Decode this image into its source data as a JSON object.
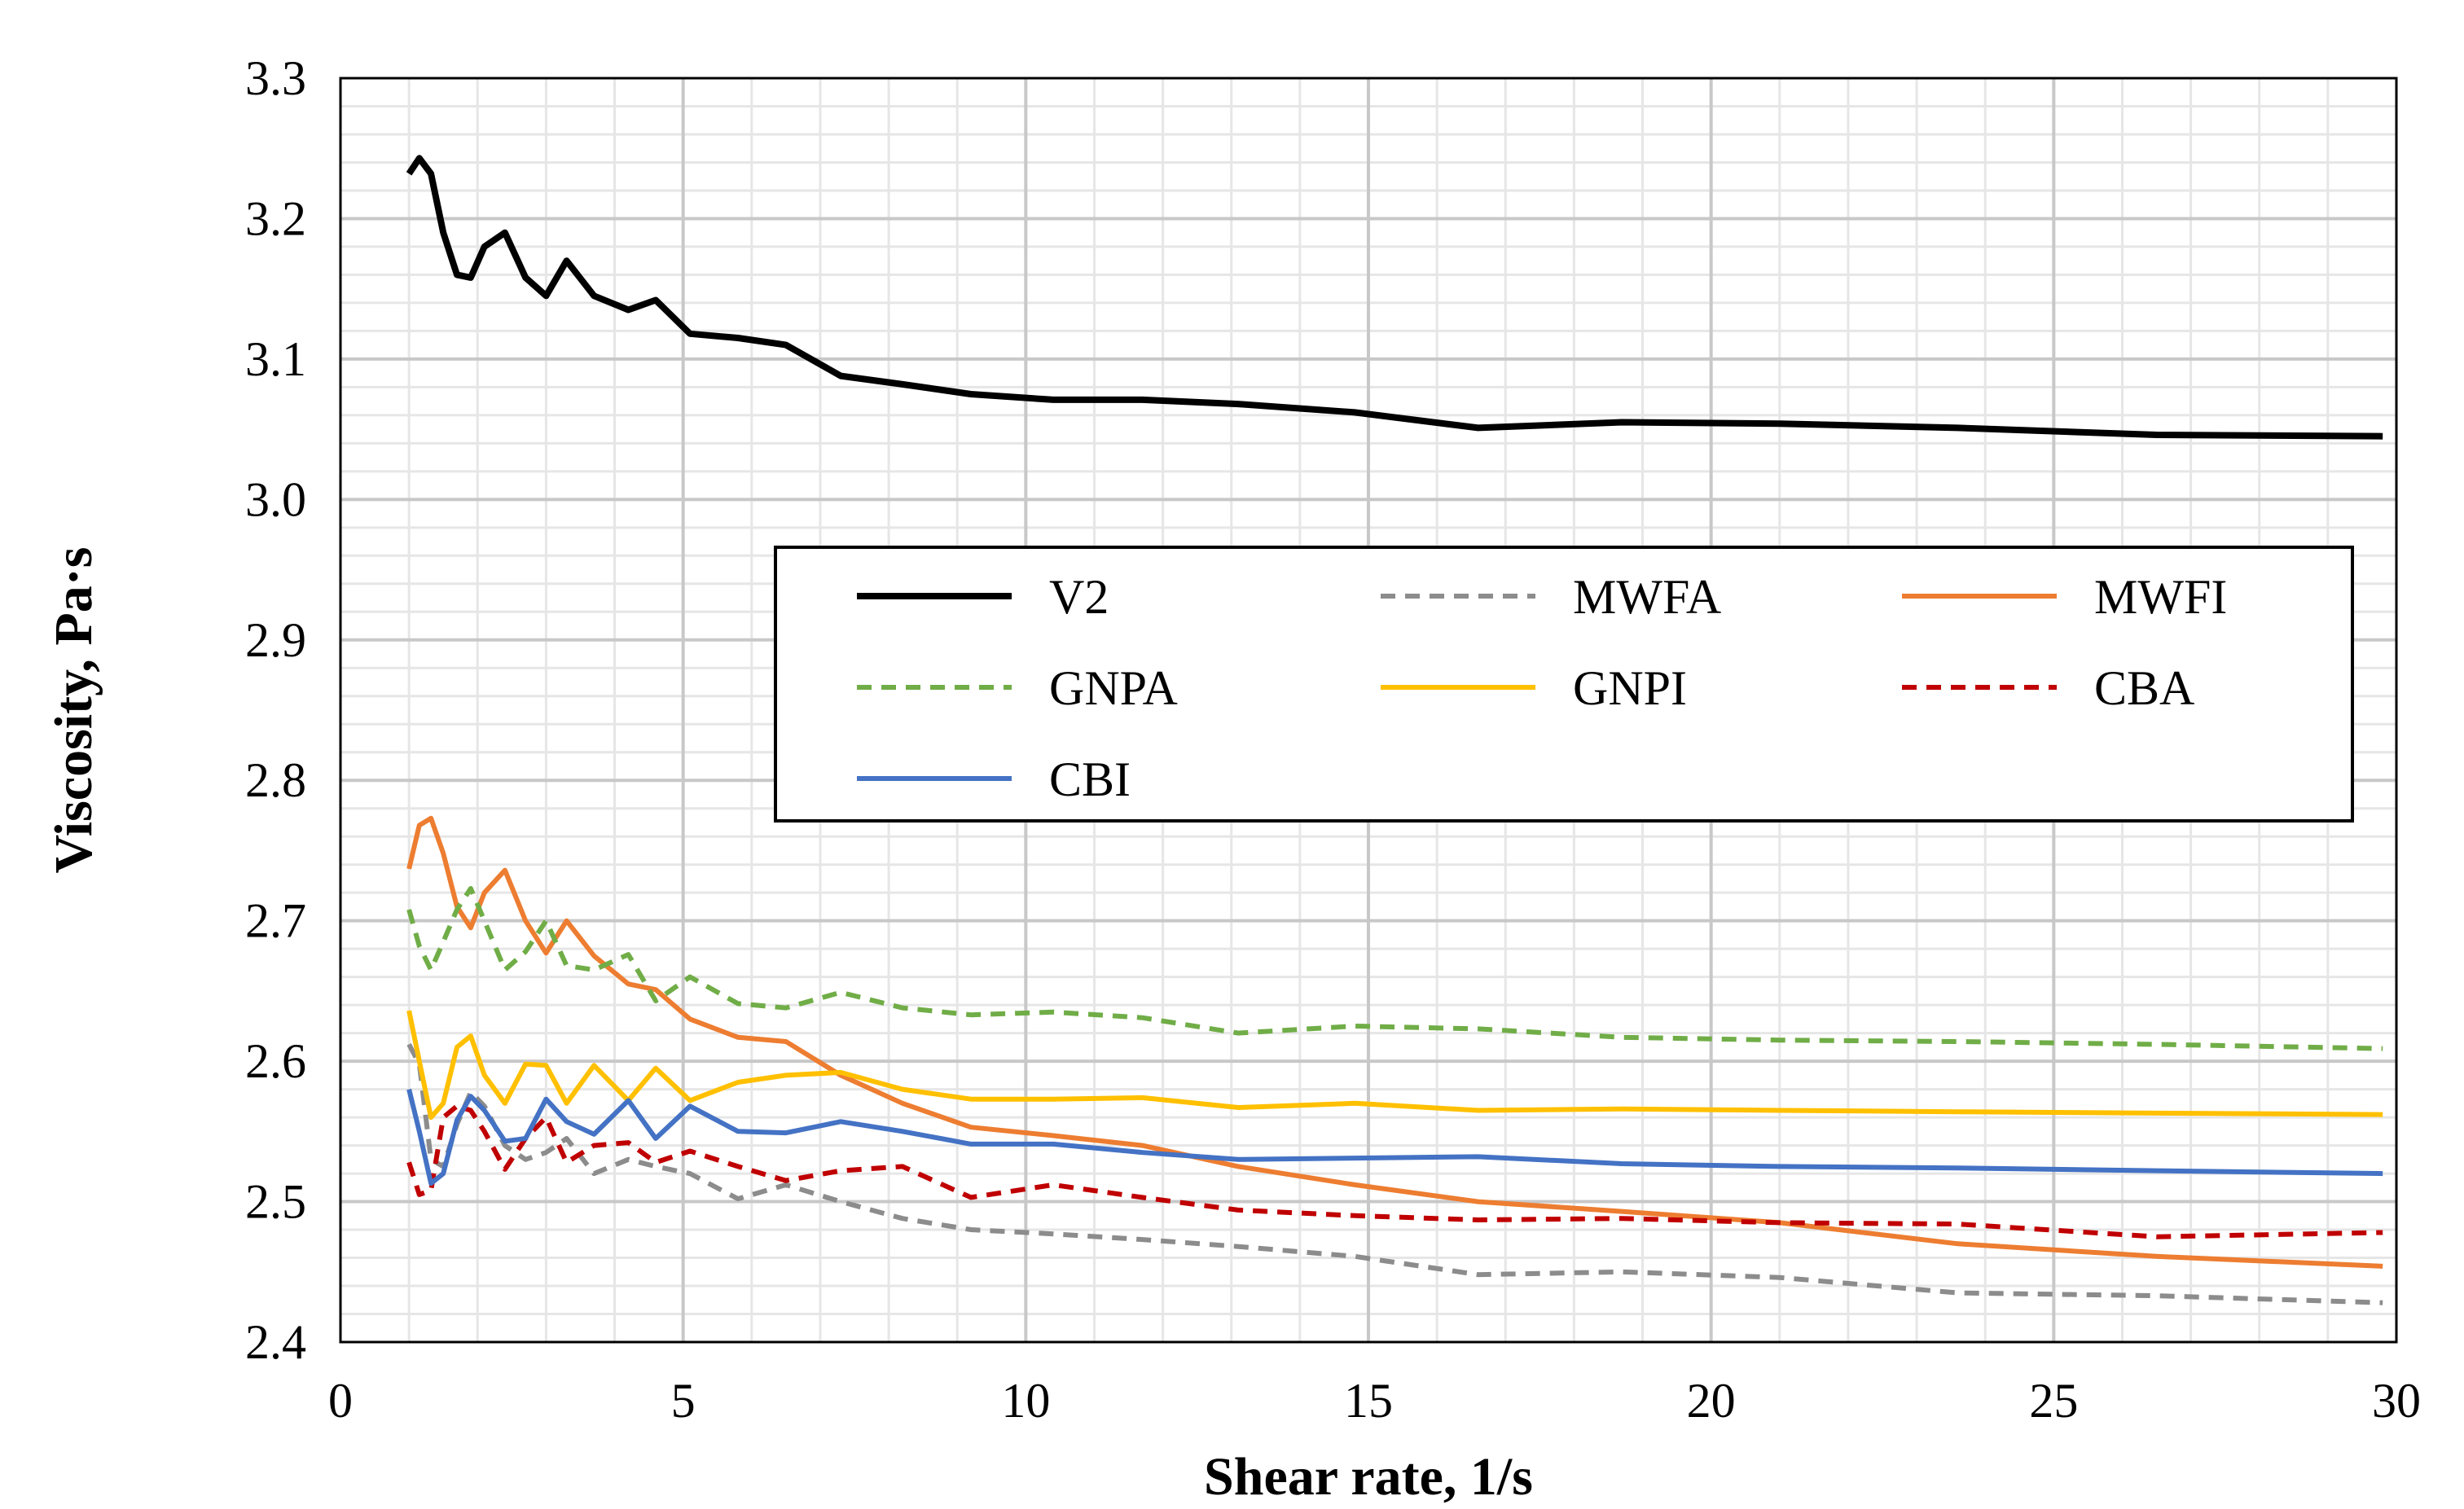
{
  "chart_data": {
    "type": "line",
    "title": "",
    "xlabel": "Shear rate, 1/s",
    "ylabel": "Viscosity, Pa·s",
    "xlim": [
      0,
      30
    ],
    "ylim": [
      2.4,
      3.3
    ],
    "x_ticks": [
      "0",
      "5",
      "10",
      "15",
      "20",
      "25",
      "30"
    ],
    "y_ticks": [
      "2.4",
      "2.5",
      "2.6",
      "2.7",
      "2.8",
      "2.9",
      "3.0",
      "3.1",
      "3.2",
      "3.3"
    ],
    "grid": true,
    "minor_grid": true,
    "legend_position": "center-right, inside plot",
    "series": [
      {
        "name": "V2",
        "color": "#000000",
        "dash": "solid",
        "x": [
          1.0,
          1.15,
          1.32,
          1.5,
          1.7,
          1.9,
          2.1,
          2.4,
          2.7,
          3.0,
          3.3,
          3.7,
          4.2,
          4.6,
          5.1,
          5.8,
          6.5,
          7.3,
          8.2,
          9.2,
          10.4,
          11.7,
          13.1,
          14.8,
          16.6,
          18.7,
          21.0,
          23.6,
          26.5,
          29.8
        ],
        "y": [
          3.232,
          3.243,
          3.232,
          3.19,
          3.16,
          3.158,
          3.18,
          3.19,
          3.158,
          3.145,
          3.17,
          3.145,
          3.135,
          3.142,
          3.118,
          3.115,
          3.11,
          3.088,
          3.082,
          3.075,
          3.071,
          3.071,
          3.068,
          3.062,
          3.051,
          3.055,
          3.054,
          3.051,
          3.046,
          3.045
        ]
      },
      {
        "name": "MWFA",
        "color": "#8c8c8c",
        "dash": "dashed",
        "x": [
          1.0,
          1.15,
          1.32,
          1.5,
          1.7,
          1.9,
          2.1,
          2.4,
          2.7,
          3.0,
          3.3,
          3.7,
          4.2,
          4.6,
          5.1,
          5.8,
          6.5,
          7.3,
          8.2,
          9.2,
          10.4,
          11.7,
          13.1,
          14.8,
          16.6,
          18.7,
          21.0,
          23.6,
          26.5,
          29.8
        ],
        "y": [
          2.612,
          2.598,
          2.53,
          2.525,
          2.555,
          2.578,
          2.568,
          2.54,
          2.53,
          2.535,
          2.545,
          2.52,
          2.53,
          2.525,
          2.52,
          2.502,
          2.512,
          2.5,
          2.488,
          2.48,
          2.477,
          2.473,
          2.468,
          2.461,
          2.448,
          2.45,
          2.446,
          2.435,
          2.433,
          2.428
        ]
      },
      {
        "name": "MWFI",
        "color": "#ed7d31",
        "dash": "solid",
        "x": [
          1.0,
          1.15,
          1.32,
          1.5,
          1.7,
          1.9,
          2.1,
          2.4,
          2.7,
          3.0,
          3.3,
          3.7,
          4.2,
          4.6,
          5.1,
          5.8,
          6.5,
          7.3,
          8.2,
          9.2,
          10.4,
          11.7,
          13.1,
          14.8,
          16.6,
          18.7,
          21.0,
          23.6,
          26.5,
          29.8
        ],
        "y": [
          2.737,
          2.768,
          2.773,
          2.748,
          2.71,
          2.695,
          2.72,
          2.736,
          2.7,
          2.677,
          2.7,
          2.675,
          2.655,
          2.651,
          2.63,
          2.617,
          2.614,
          2.59,
          2.57,
          2.553,
          2.547,
          2.54,
          2.525,
          2.512,
          2.5,
          2.493,
          2.485,
          2.47,
          2.461,
          2.454
        ]
      },
      {
        "name": "GNPA",
        "color": "#70ad47",
        "dash": "dashed",
        "x": [
          1.0,
          1.15,
          1.32,
          1.5,
          1.7,
          1.9,
          2.1,
          2.4,
          2.7,
          3.0,
          3.3,
          3.7,
          4.2,
          4.6,
          5.1,
          5.8,
          6.5,
          7.3,
          8.2,
          9.2,
          10.4,
          11.7,
          13.1,
          14.8,
          16.6,
          18.7,
          21.0,
          23.6,
          26.5,
          29.8
        ],
        "y": [
          2.708,
          2.682,
          2.665,
          2.685,
          2.708,
          2.723,
          2.7,
          2.665,
          2.678,
          2.7,
          2.668,
          2.665,
          2.676,
          2.643,
          2.66,
          2.641,
          2.638,
          2.649,
          2.638,
          2.633,
          2.635,
          2.631,
          2.62,
          2.625,
          2.623,
          2.617,
          2.615,
          2.614,
          2.612,
          2.609
        ]
      },
      {
        "name": "GNPI",
        "color": "#ffc000",
        "dash": "solid",
        "x": [
          1.0,
          1.15,
          1.32,
          1.5,
          1.7,
          1.9,
          2.1,
          2.4,
          2.7,
          3.0,
          3.3,
          3.7,
          4.2,
          4.6,
          5.1,
          5.8,
          6.5,
          7.3,
          8.2,
          9.2,
          10.4,
          11.7,
          13.1,
          14.8,
          16.6,
          18.7,
          21.0,
          23.6,
          26.5,
          29.8
        ],
        "y": [
          2.636,
          2.6,
          2.56,
          2.57,
          2.61,
          2.618,
          2.59,
          2.57,
          2.598,
          2.597,
          2.57,
          2.597,
          2.572,
          2.595,
          2.572,
          2.585,
          2.59,
          2.592,
          2.58,
          2.573,
          2.573,
          2.574,
          2.567,
          2.57,
          2.565,
          2.566,
          2.565,
          2.564,
          2.563,
          2.562
        ]
      },
      {
        "name": "CBA",
        "color": "#c00000",
        "dash": "dashed",
        "x": [
          1.0,
          1.15,
          1.32,
          1.5,
          1.7,
          1.9,
          2.1,
          2.4,
          2.7,
          3.0,
          3.3,
          3.7,
          4.2,
          4.6,
          5.1,
          5.8,
          6.5,
          7.3,
          8.2,
          9.2,
          10.4,
          11.7,
          13.1,
          14.8,
          16.6,
          18.7,
          21.0,
          23.6,
          26.5,
          29.8
        ],
        "y": [
          2.528,
          2.505,
          2.508,
          2.56,
          2.568,
          2.565,
          2.55,
          2.523,
          2.545,
          2.56,
          2.528,
          2.54,
          2.542,
          2.528,
          2.536,
          2.525,
          2.515,
          2.522,
          2.525,
          2.503,
          2.512,
          2.503,
          2.494,
          2.49,
          2.487,
          2.488,
          2.485,
          2.484,
          2.475,
          2.478
        ]
      },
      {
        "name": "CBI",
        "color": "#4472c4",
        "dash": "solid",
        "x": [
          1.0,
          1.15,
          1.32,
          1.5,
          1.7,
          1.9,
          2.1,
          2.4,
          2.7,
          3.0,
          3.3,
          3.7,
          4.2,
          4.6,
          5.1,
          5.8,
          6.5,
          7.3,
          8.2,
          9.2,
          10.4,
          11.7,
          13.1,
          14.8,
          16.6,
          18.7,
          21.0,
          23.6,
          26.5,
          29.8
        ],
        "y": [
          2.58,
          2.55,
          2.513,
          2.52,
          2.558,
          2.575,
          2.565,
          2.543,
          2.545,
          2.573,
          2.557,
          2.548,
          2.572,
          2.545,
          2.568,
          2.55,
          2.549,
          2.557,
          2.55,
          2.541,
          2.541,
          2.535,
          2.53,
          2.531,
          2.532,
          2.527,
          2.525,
          2.524,
          2.522,
          2.52
        ]
      }
    ]
  }
}
